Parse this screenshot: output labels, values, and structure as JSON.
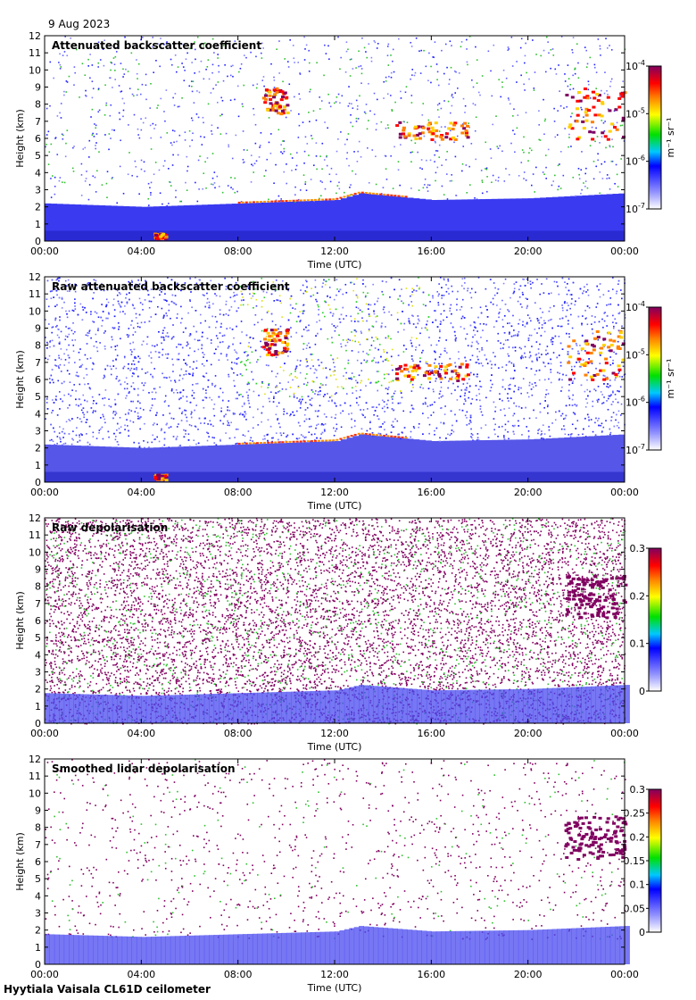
{
  "date": "9 Aug 2023",
  "footer": "Hyytiala Vaisala CL61D ceilometer",
  "chart_data": [
    {
      "type": "heatmap",
      "title": "Attenuated backscatter coefficient",
      "xlabel": "Time (UTC)",
      "ylabel": "Height (km)",
      "x_ticks": [
        "00:00",
        "04:00",
        "08:00",
        "12:00",
        "16:00",
        "20:00",
        "00:00"
      ],
      "y_ticks": [
        0,
        1,
        2,
        3,
        4,
        5,
        6,
        7,
        8,
        9,
        10,
        11,
        12
      ],
      "xlim": [
        0,
        24
      ],
      "ylim": [
        0,
        12
      ],
      "colorbar": {
        "scale": "log",
        "range": [
          1e-07,
          0.0001
        ],
        "tick_base": "10",
        "tick_exponents": [
          "-7",
          "-6",
          "-5",
          "-4"
        ],
        "label": "m⁻¹ sr⁻¹"
      },
      "features": {
        "boundary_layer_top_km": [
          [
            0,
            2.2
          ],
          [
            4,
            2.0
          ],
          [
            8,
            2.2
          ],
          [
            12,
            2.4
          ],
          [
            13,
            2.8
          ],
          [
            16,
            2.4
          ],
          [
            20,
            2.5
          ],
          [
            24,
            2.8
          ]
        ],
        "clouds": [
          {
            "t": [
              4.5,
              5.0
            ],
            "h": [
              0.2,
              0.5
            ]
          },
          {
            "t": [
              9.0,
              10.0
            ],
            "h": [
              7.5,
              9.0
            ]
          },
          {
            "t": [
              14.5,
              17.5
            ],
            "h": [
              6.0,
              7.0
            ]
          },
          {
            "t": [
              21.5,
              24.0
            ],
            "h": [
              6.0,
              9.0
            ]
          }
        ]
      }
    },
    {
      "type": "heatmap",
      "title": "Raw attenuated backscatter coefficient",
      "xlabel": "Time (UTC)",
      "ylabel": "Height (km)",
      "x_ticks": [
        "00:00",
        "04:00",
        "08:00",
        "12:00",
        "16:00",
        "20:00",
        "00:00"
      ],
      "y_ticks": [
        0,
        1,
        2,
        3,
        4,
        5,
        6,
        7,
        8,
        9,
        10,
        11,
        12
      ],
      "xlim": [
        0,
        24
      ],
      "ylim": [
        0,
        12
      ],
      "colorbar": {
        "scale": "log",
        "range": [
          1e-07,
          0.0001
        ],
        "tick_base": "10",
        "tick_exponents": [
          "-7",
          "-6",
          "-5",
          "-4"
        ],
        "label": "m⁻¹ sr⁻¹"
      }
    },
    {
      "type": "heatmap",
      "title": "Raw depolarisation",
      "xlabel": "Time (UTC)",
      "ylabel": "Height (km)",
      "x_ticks": [
        "00:00",
        "04:00",
        "08:00",
        "12:00",
        "16:00",
        "20:00",
        "00:00"
      ],
      "y_ticks": [
        0,
        1,
        2,
        3,
        4,
        5,
        6,
        7,
        8,
        9,
        10,
        11,
        12
      ],
      "xlim": [
        0,
        24
      ],
      "ylim": [
        0,
        12
      ],
      "colorbar": {
        "scale": "linear",
        "range": [
          0,
          0.3
        ],
        "ticks": [
          "0",
          "0.1",
          "0.2",
          "0.3"
        ]
      }
    },
    {
      "type": "heatmap",
      "title": "Smoothed lidar depolarisation",
      "xlabel": "Time (UTC)",
      "ylabel": "Height (km)",
      "x_ticks": [
        "00:00",
        "04:00",
        "08:00",
        "12:00",
        "16:00",
        "20:00",
        "00:00"
      ],
      "y_ticks": [
        0,
        1,
        2,
        3,
        4,
        5,
        6,
        7,
        8,
        9,
        10,
        11,
        12
      ],
      "xlim": [
        0,
        24
      ],
      "ylim": [
        0,
        12
      ],
      "colorbar": {
        "scale": "linear",
        "range": [
          0,
          0.3
        ],
        "ticks": [
          "0",
          "0.05",
          "0.1",
          "0.15",
          "0.2",
          "0.25",
          "0.3"
        ]
      }
    }
  ]
}
